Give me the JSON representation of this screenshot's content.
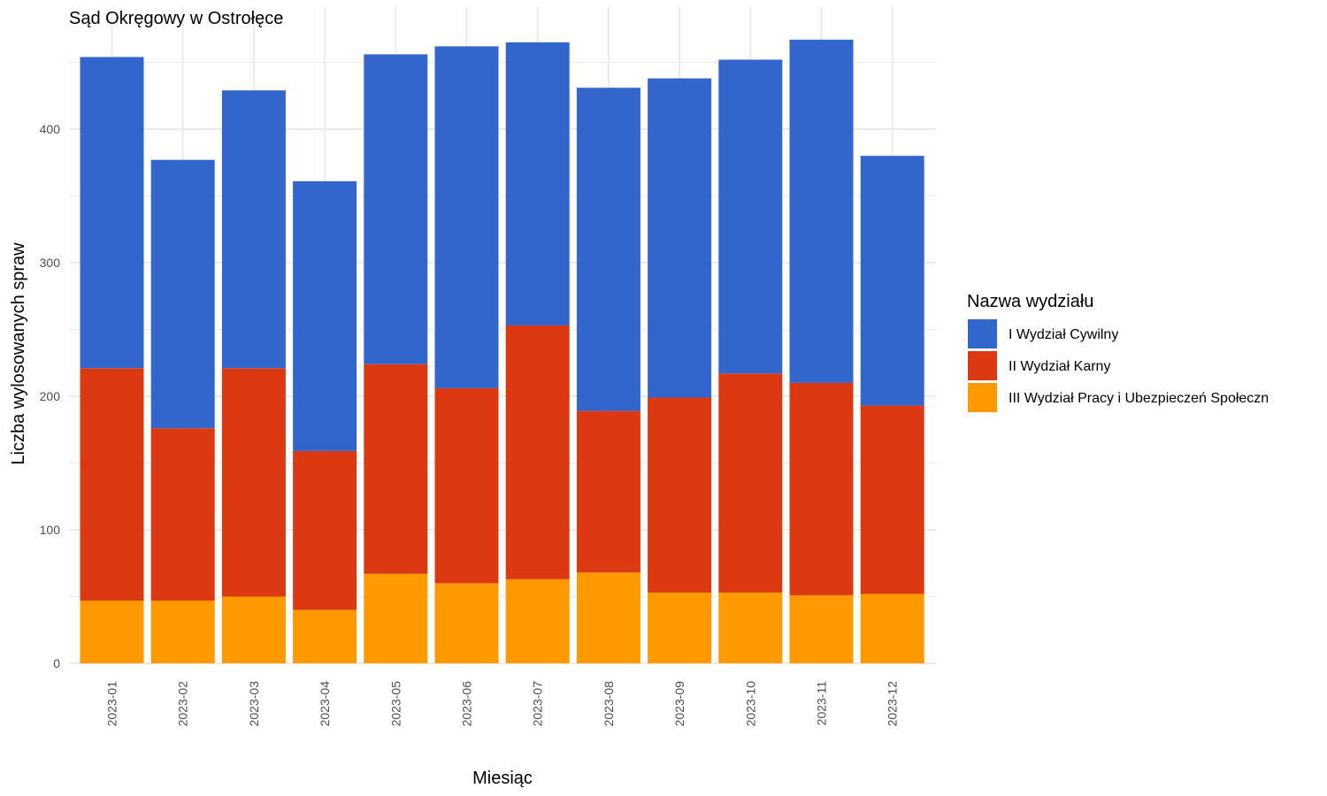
{
  "chart_data": {
    "type": "bar",
    "stacked": true,
    "title": "Sąd Okręgowy w Ostrołęce",
    "xlabel": "Miesiąc",
    "ylabel": "Liczba wylosowanych spraw",
    "ylim": [
      0,
      480
    ],
    "yticks": [
      0,
      100,
      200,
      300,
      400
    ],
    "grid": true,
    "legend": {
      "title": "Nazwa wydziału",
      "position": "right"
    },
    "categories": [
      "2023-01",
      "2023-02",
      "2023-03",
      "2023-04",
      "2023-05",
      "2023-06",
      "2023-07",
      "2023-08",
      "2023-09",
      "2023-10",
      "2023-11",
      "2023-12"
    ],
    "series": [
      {
        "name": "III Wydział Pracy i Ubezpieczeń Społeczn",
        "color": "#FF9900",
        "values": [
          47,
          47,
          50,
          40,
          67,
          60,
          63,
          68,
          53,
          53,
          51,
          52
        ]
      },
      {
        "name": "II Wydział Karny",
        "color": "#DC3912",
        "values": [
          174,
          129,
          171,
          119,
          157,
          146,
          190,
          121,
          146,
          164,
          159,
          141
        ]
      },
      {
        "name": "I Wydział Cywilny",
        "color": "#3366CC",
        "values": [
          233,
          201,
          208,
          202,
          232,
          256,
          212,
          242,
          239,
          235,
          257,
          187
        ]
      }
    ]
  }
}
